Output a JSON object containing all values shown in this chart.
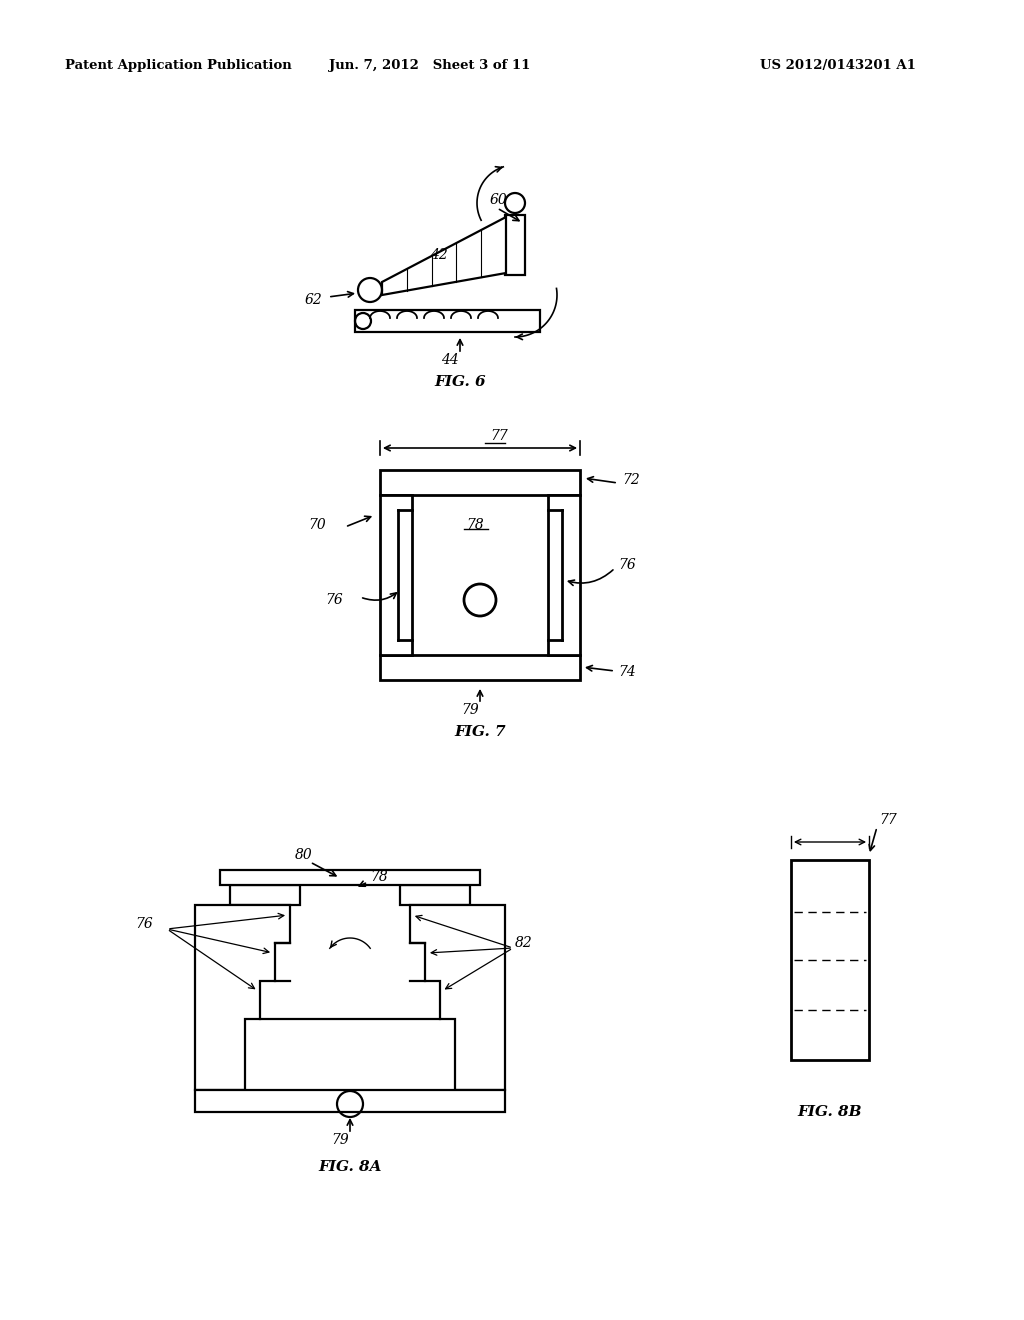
{
  "bg_color": "#ffffff",
  "header_left": "Patent Application Publication",
  "header_center": "Jun. 7, 2012   Sheet 3 of 11",
  "header_right": "US 2012/0143201 A1",
  "fig6_label": "FIG. 6",
  "fig7_label": "FIG. 7",
  "fig8a_label": "FIG. 8A",
  "fig8b_label": "FIG. 8B",
  "lw": 1.6,
  "lw2": 2.0,
  "fs": 10,
  "fs_fig": 11
}
